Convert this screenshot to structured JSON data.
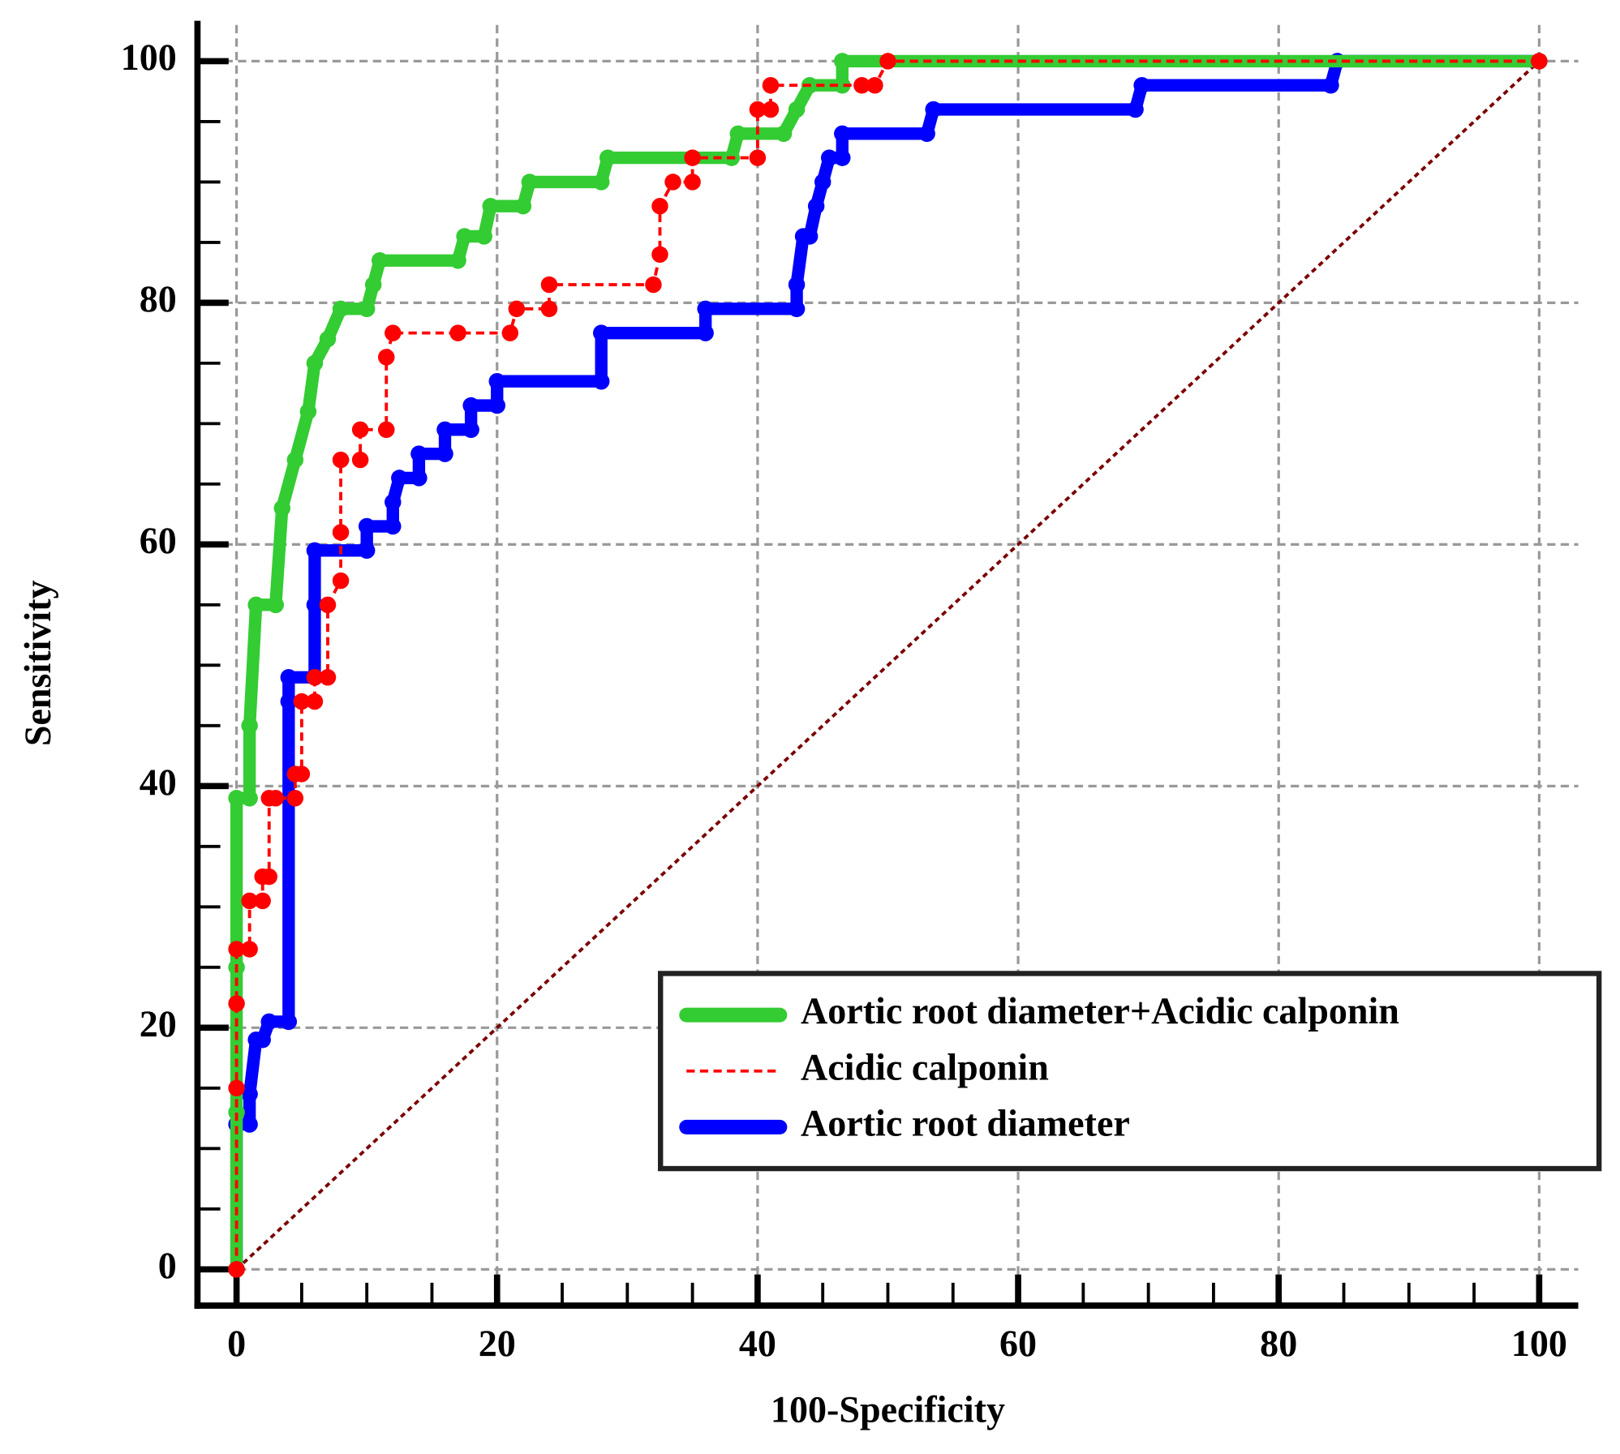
{
  "chart_data": {
    "type": "line",
    "x_label": "100-Specificity",
    "y_label": "Sensitivity",
    "xlim": [
      -3,
      103
    ],
    "ylim": [
      -3,
      103
    ],
    "xticks": [
      0,
      20,
      40,
      60,
      80,
      100
    ],
    "yticks": [
      0,
      20,
      40,
      60,
      80,
      100
    ],
    "grid": true,
    "legend": "lower right",
    "reference_line_color": "#7b0000",
    "series": [
      {
        "name": "Aortic root diameter+Acidic calponin",
        "color": "#33cc33",
        "style": "solid",
        "x": [
          0,
          0,
          0,
          0,
          1,
          1,
          1.5,
          3,
          3.5,
          4.5,
          5.5,
          6,
          7,
          8,
          10,
          10.5,
          11,
          17,
          17.5,
          19,
          19.5,
          22,
          22.5,
          28,
          28.5,
          38,
          38.5,
          42,
          43,
          44,
          46.5,
          46.5,
          100
        ],
        "values": [
          0,
          13,
          25,
          39,
          39,
          45,
          55,
          55,
          63,
          67,
          71,
          75,
          77,
          79.5,
          79.5,
          81.5,
          83.5,
          83.5,
          85.5,
          85.5,
          88,
          88,
          90,
          90,
          92,
          92,
          94,
          94,
          96,
          98,
          98,
          100,
          100
        ]
      },
      {
        "name": "Acidic calponin",
        "color": "#ff0000",
        "style": "dashed",
        "x": [
          0,
          0,
          0,
          0,
          1,
          1,
          2,
          2,
          2.5,
          2.5,
          3,
          4.5,
          4.5,
          5,
          5,
          6,
          6,
          7,
          7,
          8,
          8,
          8,
          9.5,
          9.5,
          11.5,
          11.5,
          12,
          17,
          21,
          21.5,
          24,
          24,
          32,
          32.5,
          32.5,
          33.5,
          35,
          35,
          40,
          40,
          41,
          41,
          48,
          49,
          50,
          100
        ],
        "values": [
          0,
          15,
          22,
          26.5,
          26.5,
          30.5,
          30.5,
          32.5,
          32.5,
          39,
          39,
          39,
          41,
          41,
          47,
          47,
          49,
          49,
          55,
          57,
          61,
          67,
          67,
          69.5,
          69.5,
          75.5,
          77.5,
          77.5,
          77.5,
          79.5,
          79.5,
          81.5,
          81.5,
          84,
          88,
          90,
          90,
          92,
          92,
          96,
          96,
          98,
          98,
          98,
          100,
          100
        ]
      },
      {
        "name": "Aortic root diameter",
        "color": "#0000ff",
        "style": "solid",
        "x": [
          0,
          0,
          1,
          1,
          1.5,
          2,
          2.5,
          4,
          4,
          4,
          6,
          6,
          6,
          10,
          10,
          12,
          12,
          12.5,
          14,
          14,
          16,
          16,
          18,
          18,
          20,
          20,
          28,
          28,
          36,
          36,
          43,
          43,
          43.5,
          44,
          44.5,
          45,
          45.5,
          46.5,
          46.5,
          53,
          53.5,
          69,
          69.5,
          84,
          84.5,
          100
        ],
        "values": [
          0,
          12,
          12,
          14.5,
          19,
          19,
          20.5,
          20.5,
          47,
          49,
          49,
          55,
          59.5,
          59.5,
          61.5,
          61.5,
          63.5,
          65.5,
          65.5,
          67.5,
          67.5,
          69.5,
          69.5,
          71.5,
          71.5,
          73.5,
          73.5,
          77.5,
          77.5,
          79.5,
          79.5,
          81.5,
          85.5,
          85.5,
          88,
          90,
          92,
          92,
          94,
          94,
          96,
          96,
          98,
          98,
          100,
          100
        ]
      }
    ]
  }
}
